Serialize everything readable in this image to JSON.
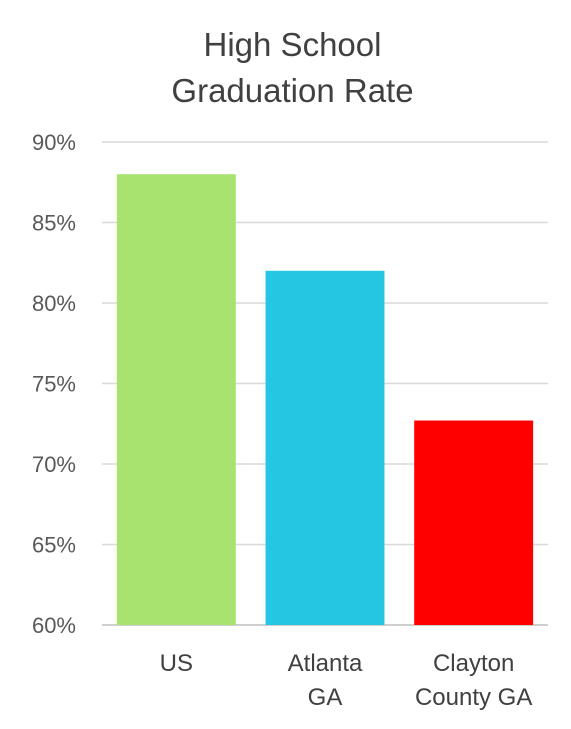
{
  "chart_data": {
    "type": "bar",
    "title_lines": [
      "High School",
      "Graduation Rate"
    ],
    "categories": [
      [
        "US"
      ],
      [
        "Atlanta",
        "GA"
      ],
      [
        "Clayton",
        "County GA"
      ]
    ],
    "values": [
      88.0,
      82.0,
      72.7
    ],
    "colors": [
      "#a9e36f",
      "#24c6e2",
      "#ff0000"
    ],
    "yticks": [
      "60%",
      "65%",
      "70%",
      "75%",
      "80%",
      "85%",
      "90%"
    ],
    "ylim": [
      60,
      90
    ],
    "grid": true,
    "legend": "none",
    "gridline_color": "#d9d9d9"
  }
}
